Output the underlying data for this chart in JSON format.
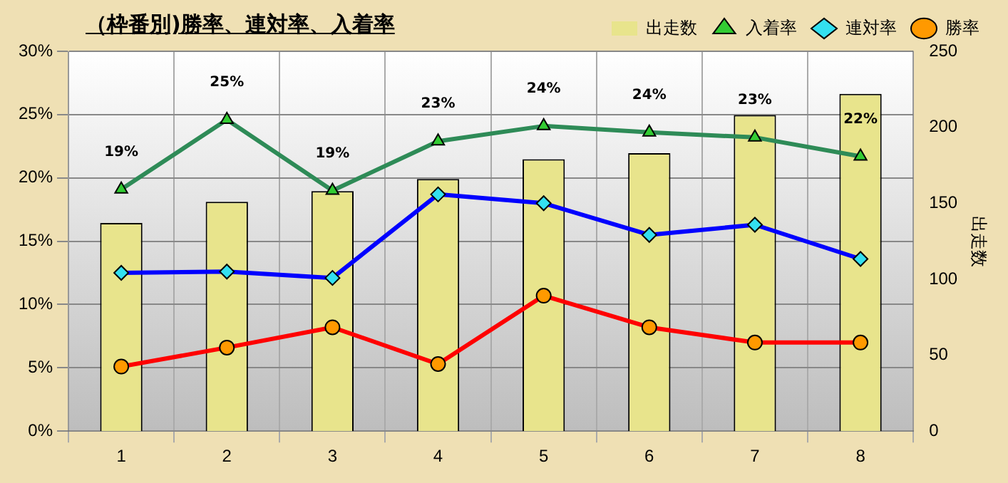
{
  "chart_data": {
    "type": "bar",
    "title": "（枠番別)勝率、連対率、入着率",
    "y2label": "出走数",
    "categories": [
      "1",
      "2",
      "3",
      "4",
      "5",
      "6",
      "7",
      "8"
    ],
    "series": [
      {
        "name": "出走数",
        "type": "bar",
        "axis": "y2",
        "color": "#e8e48c",
        "values": [
          137,
          151,
          158,
          166,
          179,
          183,
          208,
          222
        ]
      },
      {
        "name": "入着率",
        "type": "line",
        "marker": "triangle",
        "color": "#2e8b57",
        "values": [
          19.1,
          24.6,
          19.0,
          22.9,
          24.1,
          23.6,
          23.2,
          21.7
        ],
        "value_labels": [
          "19%",
          "25%",
          "19%",
          "23%",
          "24%",
          "24%",
          "23%",
          "22%"
        ]
      },
      {
        "name": "連対率",
        "type": "line",
        "marker": "diamond",
        "color": "#0000ff",
        "values": [
          12.5,
          12.6,
          12.1,
          18.7,
          18.0,
          15.5,
          16.3,
          13.6
        ]
      },
      {
        "name": "勝率",
        "type": "line",
        "marker": "circle",
        "color": "#ff0000",
        "values": [
          5.1,
          6.6,
          8.2,
          5.3,
          10.7,
          8.2,
          7.0,
          7.0
        ]
      }
    ],
    "ylim": [
      0,
      30
    ],
    "yticks": [
      {
        "value": 0,
        "label": "0%"
      },
      {
        "value": 5,
        "label": "5%"
      },
      {
        "value": 10,
        "label": "10%"
      },
      {
        "value": 15,
        "label": "15%"
      },
      {
        "value": 20,
        "label": "20%"
      },
      {
        "value": 25,
        "label": "25%"
      },
      {
        "value": 30,
        "label": "30%"
      }
    ],
    "y2lim": [
      0,
      250
    ],
    "y2ticks": [
      0,
      50,
      100,
      150,
      200,
      250
    ],
    "grid": true,
    "legend": "top right",
    "line_style": "solid"
  }
}
